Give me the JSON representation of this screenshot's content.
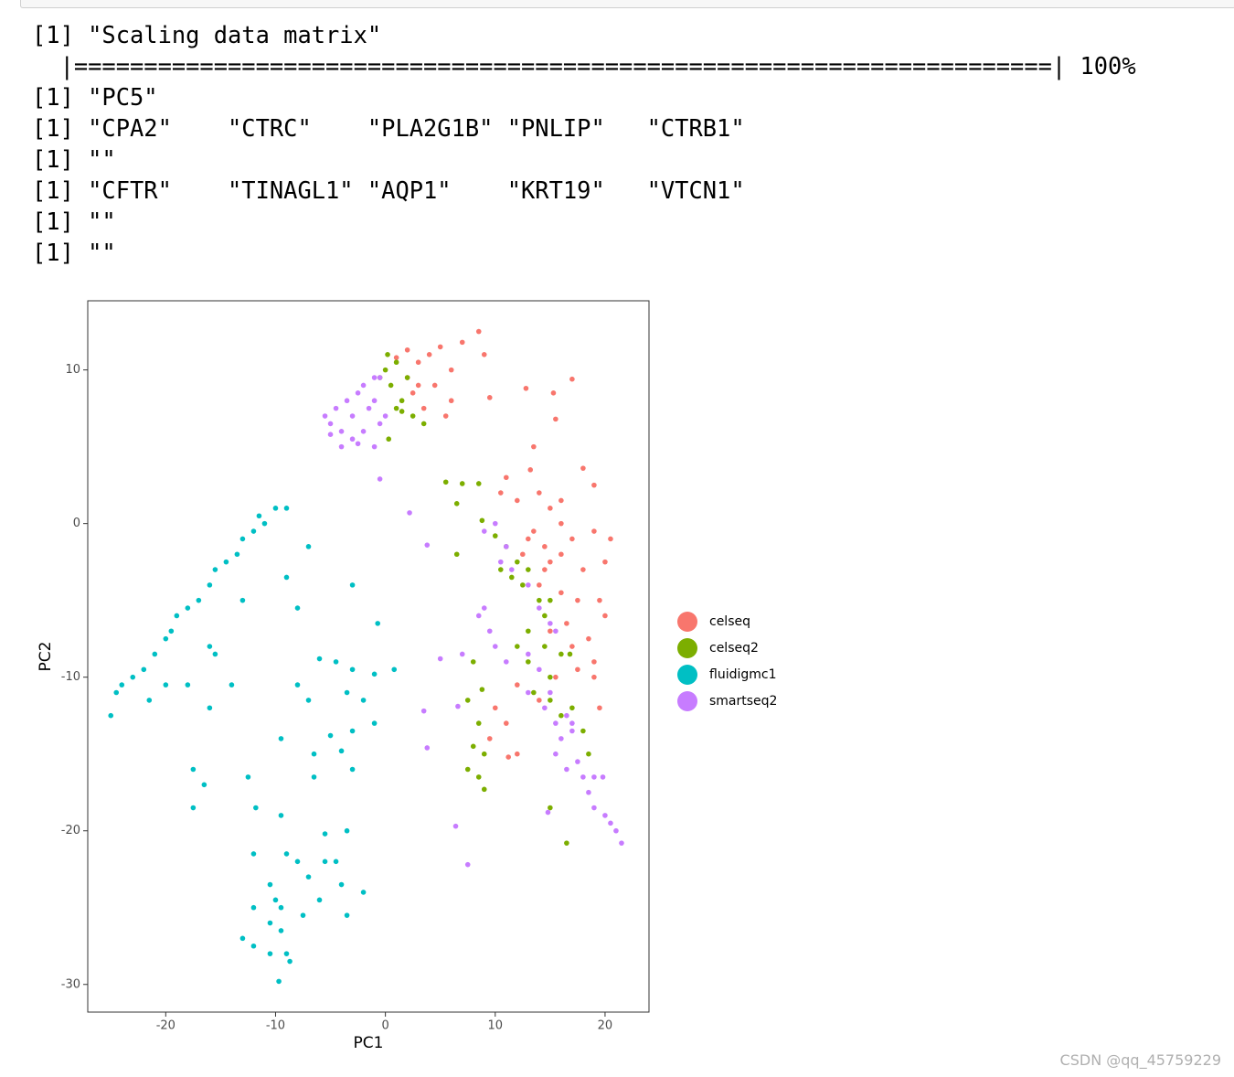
{
  "console": {
    "lines": [
      "[1] \"Scaling data matrix\"",
      "  |======================================================================| 100%",
      "[1] \"PC5\"",
      "[1] \"CPA2\"    \"CTRC\"    \"PLA2G1B\" \"PNLIP\"   \"CTRB1\"  ",
      "[1] \"\"",
      "[1] \"CFTR\"    \"TINAGL1\" \"AQP1\"    \"KRT19\"   \"VTCN1\"  ",
      "[1] \"\"",
      "[1] \"\""
    ]
  },
  "chart_data": {
    "type": "scatter",
    "x_label": "PC1",
    "y_label": "PC2",
    "xlim": [
      -27.1,
      24.0
    ],
    "ylim": [
      -31.8,
      14.5
    ],
    "xticks": [
      -20,
      -10,
      0,
      10,
      20
    ],
    "yticks": [
      -30,
      -20,
      -10,
      0,
      10
    ],
    "grid": false,
    "legend": "right",
    "series": [
      {
        "name": "celseq",
        "color": "#F8766D",
        "x": [
          2,
          3,
          4,
          2.5,
          5,
          6,
          7,
          8.5,
          9,
          4.5,
          3.5,
          5.5,
          1,
          2,
          3,
          6,
          9.5,
          12.8,
          15.3,
          17,
          15.5,
          13.5,
          13.2,
          18,
          19,
          11,
          10.5,
          12,
          14,
          15,
          16,
          13,
          14.5,
          12.5,
          15,
          17,
          19,
          20.5,
          20,
          18,
          14,
          16,
          17.5,
          19.5,
          20,
          16.5,
          15,
          17,
          18.5,
          19,
          17.5,
          15.5,
          19,
          12,
          14,
          19.5,
          10,
          11,
          12,
          9.5,
          11.2,
          16,
          14.5,
          13.5,
          16
        ],
        "values": [
          9.5,
          10.5,
          11,
          8.5,
          11.5,
          10,
          11.8,
          12.5,
          11,
          9,
          7.5,
          7,
          10.8,
          11.3,
          9,
          8,
          8.2,
          8.8,
          8.5,
          9.4,
          6.8,
          5,
          3.5,
          3.6,
          2.5,
          3,
          2,
          1.5,
          2,
          1,
          0,
          -1,
          -1.5,
          -2,
          -2.5,
          -1,
          -0.5,
          -1,
          -2.5,
          -3,
          -4,
          -4.5,
          -5,
          -5,
          -6,
          -6.5,
          -7,
          -8,
          -7.5,
          -9,
          -9.5,
          -10,
          -10,
          -10.5,
          -11.5,
          -12,
          -12,
          -13,
          -15,
          -14,
          -15.2,
          -2,
          -3,
          -0.5,
          1.5
        ]
      },
      {
        "name": "celseq2",
        "color": "#7CAE00",
        "x": [
          0,
          0.5,
          1,
          1.5,
          0.2,
          -0.5,
          1,
          2,
          2.5,
          3.5,
          0.3,
          1.5,
          5.5,
          7,
          8.5,
          6.5,
          8.8,
          10,
          6.5,
          11,
          12,
          10.5,
          11.5,
          13,
          12.5,
          14,
          15,
          14.5,
          13,
          12,
          14.5,
          16,
          16.8,
          13,
          15,
          13.5,
          15,
          17,
          16,
          8,
          8.8,
          7.5,
          8.5,
          8,
          9,
          7.5,
          8.5,
          9,
          18,
          15,
          16.5,
          18.5
        ],
        "values": [
          10,
          9,
          10.5,
          8,
          11,
          9.5,
          7.5,
          9.5,
          7,
          6.5,
          5.5,
          7.3,
          2.7,
          2.6,
          2.6,
          1.3,
          0.2,
          -0.8,
          -2,
          -1.5,
          -2.5,
          -3,
          -3.5,
          -3,
          -4,
          -5,
          -5,
          -6,
          -7,
          -8,
          -8,
          -8.5,
          -8.5,
          -9,
          -10,
          -11,
          -11.5,
          -12,
          -12.5,
          -9,
          -10.8,
          -11.5,
          -13,
          -14.5,
          -15,
          -16,
          -16.5,
          -17.3,
          -13.5,
          -18.5,
          -20.8,
          -15
        ]
      },
      {
        "name": "fluidigmc1",
        "color": "#00BFC4",
        "x": [
          -25,
          -24.5,
          -24,
          -23,
          -22,
          -21,
          -20,
          -19.5,
          -19,
          -18,
          -17,
          -16,
          -15.5,
          -14.5,
          -13.5,
          -13,
          -12,
          -11,
          -11.5,
          -10,
          -9,
          -13,
          -16,
          -15.5,
          -18,
          -20,
          -21.5,
          -14,
          -16,
          -8,
          -7,
          -9,
          -3,
          -0.7,
          -6,
          -4.5,
          -3,
          -1,
          0.8,
          -8,
          -7,
          -3.5,
          -2,
          -1,
          -3,
          -5,
          -9.5,
          -4,
          -6.5,
          -3,
          -6.5,
          -17.5,
          -16.5,
          -17.5,
          -12.5,
          -11.8,
          -9.5,
          -3.5,
          -5.5,
          -12,
          -9,
          -8,
          -5.5,
          -4.5,
          -7,
          -10.5,
          -4,
          -2,
          -10,
          -6,
          -12,
          -9.5,
          -3.5,
          -7.5,
          -10.5,
          -9.5,
          -13,
          -12,
          -10.5,
          -9,
          -8.7,
          -9.7
        ],
        "values": [
          -12.5,
          -11,
          -10.5,
          -10,
          -9.5,
          -8.5,
          -7.5,
          -7,
          -6,
          -5.5,
          -5,
          -4,
          -3,
          -2.5,
          -2,
          -1,
          -0.5,
          0,
          0.5,
          1,
          1,
          -5,
          -8,
          -8.5,
          -10.5,
          -10.5,
          -11.5,
          -10.5,
          -12,
          -5.5,
          -1.5,
          -3.5,
          -4,
          -6.5,
          -8.8,
          -9,
          -9.5,
          -9.8,
          -9.5,
          -10.5,
          -11.5,
          -11,
          -11.5,
          -13,
          -13.5,
          -13.8,
          -14,
          -14.8,
          -15,
          -16,
          -16.5,
          -16,
          -17,
          -18.5,
          -16.5,
          -18.5,
          -19,
          -20,
          -20.2,
          -21.5,
          -21.5,
          -22,
          -22,
          -22,
          -23,
          -23.5,
          -23.5,
          -24,
          -24.5,
          -24.5,
          -25,
          -25,
          -25.5,
          -25.5,
          -26,
          -26.5,
          -27,
          -27.5,
          -28,
          -28,
          -28.5,
          -29.8
        ]
      },
      {
        "name": "smartseq2",
        "color": "#C77CFF",
        "x": [
          -5.5,
          -5,
          -4.5,
          -4,
          -3.5,
          -3,
          -2.5,
          -2,
          -1.5,
          -1,
          -0.5,
          0,
          -2,
          -3,
          -4,
          -5,
          -1,
          -0.5,
          -1,
          -2.5,
          -0.5,
          2.2,
          3.8,
          9,
          10,
          10.5,
          11,
          11.5,
          13,
          14,
          15,
          15.5,
          9,
          9.5,
          8.5,
          10,
          11,
          13,
          14,
          15,
          14.5,
          16.5,
          17,
          16,
          15.5,
          17.5,
          16.5,
          18,
          19,
          18.5,
          19,
          20,
          20.5,
          21,
          21.5,
          17,
          15.5,
          7,
          5,
          3.5,
          3.8,
          6.4,
          7.5,
          14.8,
          19.8,
          6.6,
          13
        ],
        "values": [
          7,
          6.5,
          7.5,
          6,
          8,
          7,
          8.5,
          9,
          7.5,
          8,
          9.5,
          7,
          6,
          5.5,
          5,
          5.8,
          5,
          6.5,
          9.5,
          5.2,
          2.9,
          0.7,
          -1.4,
          -0.5,
          0,
          -2.5,
          -1.5,
          -3,
          -4,
          -5.5,
          -6.5,
          -7,
          -5.5,
          -7,
          -6,
          -8,
          -9,
          -8.5,
          -9.5,
          -11,
          -12,
          -12.5,
          -13.5,
          -14,
          -15,
          -15.5,
          -16,
          -16.5,
          -16.5,
          -17.5,
          -18.5,
          -19,
          -19.5,
          -20,
          -20.8,
          -13,
          -13,
          -8.5,
          -8.8,
          -12.2,
          -14.6,
          -19.7,
          -22.2,
          -18.8,
          -16.5,
          -11.9,
          -11
        ]
      }
    ]
  },
  "watermark": "CSDN @qq_45759229"
}
